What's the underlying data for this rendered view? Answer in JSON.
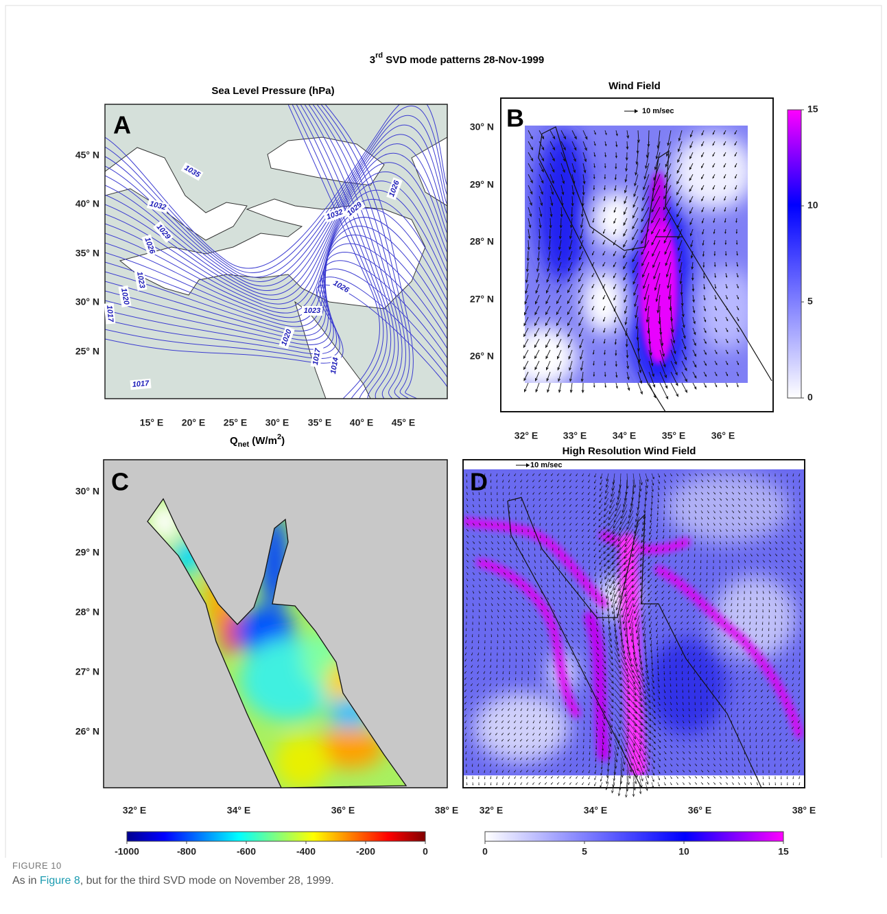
{
  "figure": {
    "title": {
      "base": "3",
      "sup": "rd",
      "rest": " SVD mode patterns 28-Nov-1999"
    },
    "panels": {
      "A": {
        "letter": "A",
        "title": "Sea Level Pressure (hPa)",
        "yticks": [
          "45° N",
          "40° N",
          "35° N",
          "30° N",
          "25° N"
        ],
        "xticks": [
          "15° E",
          "20° E",
          "25° E",
          "30° E",
          "35° E",
          "40° E",
          "45° E"
        ],
        "contour_labels": [
          "1035",
          "1032",
          "1029",
          "1026",
          "1023",
          "1020",
          "1017",
          "1032",
          "1029",
          "1026",
          "1026",
          "1023",
          "1020",
          "1017",
          "1014",
          "1017"
        ]
      },
      "B": {
        "letter": "B",
        "title": "Wind Field",
        "reference_arrow": "10 m/sec",
        "yticks": [
          "30° N",
          "29° N",
          "28° N",
          "27° N",
          "26° N"
        ],
        "xticks": [
          "32° E",
          "33° E",
          "34° E",
          "35° E",
          "36° E"
        ],
        "colorbar_ticks": [
          0,
          5,
          10,
          15
        ]
      },
      "C": {
        "letter": "C",
        "title": {
          "base": "Q",
          "sub": "net",
          "unit": " (W/m",
          "sup": "2",
          "close": ")"
        },
        "yticks": [
          "30° N",
          "29° N",
          "28° N",
          "27° N",
          "26° N"
        ],
        "xticks": [
          "32° E",
          "34° E",
          "36° E",
          "38° E"
        ],
        "colorbar_ticks": [
          -1000,
          -800,
          -600,
          -400,
          -200,
          0
        ]
      },
      "D": {
        "letter": "D",
        "title": "High Resolution Wind Field",
        "reference_arrow": "10 m/sec",
        "xticks": [
          "32° E",
          "34° E",
          "36° E",
          "38° E"
        ],
        "colorbar_ticks": [
          0,
          5,
          10,
          15
        ]
      }
    }
  },
  "caption": {
    "label": "FIGURE 10",
    "before": "As in ",
    "link": "Figure 8",
    "after": ", but for the third SVD mode on November 28, 1999."
  }
}
